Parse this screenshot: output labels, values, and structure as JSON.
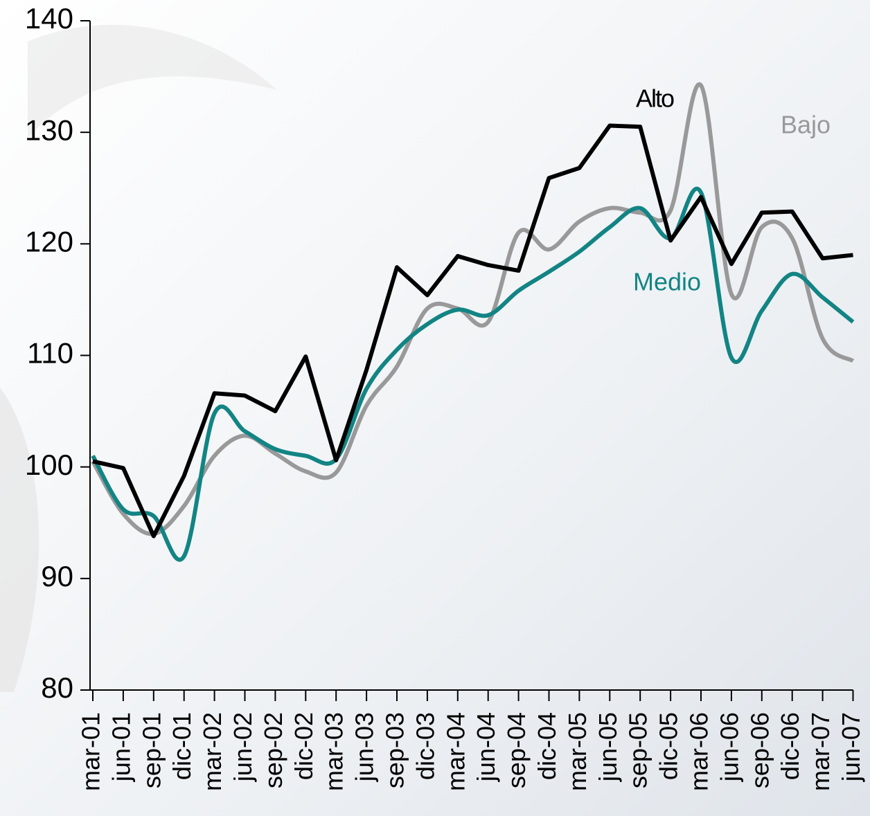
{
  "chart_data": {
    "type": "line",
    "categories": [
      "mar-01",
      "jun-01",
      "sep-01",
      "dic-01",
      "mar-02",
      "jun-02",
      "sep-02",
      "dic-02",
      "mar-03",
      "jun-03",
      "sep-03",
      "dic-03",
      "mar-04",
      "jun-04",
      "sep-04",
      "dic-04",
      "mar-05",
      "jun-05",
      "sep-05",
      "dic-05",
      "mar-06",
      "jun-06",
      "sep-06",
      "dic-06",
      "mar-07",
      "jun-07"
    ],
    "series": [
      {
        "name": "Alto",
        "color": "#000000",
        "values": [
          100.5,
          99.9,
          93.8,
          99.2,
          106.6,
          106.4,
          105.0,
          109.9,
          100.6,
          108.7,
          117.9,
          115.4,
          118.9,
          118.1,
          117.6,
          125.9,
          126.8,
          130.6,
          130.5,
          120.3,
          124.2,
          118.2,
          122.8,
          122.9,
          118.7,
          119.0
        ]
      },
      {
        "name": "Bajo",
        "color": "#999999",
        "values": [
          100.5,
          95.8,
          94.0,
          96.5,
          101.0,
          102.8,
          101.2,
          99.6,
          99.5,
          105.5,
          109.0,
          114.2,
          114.2,
          113.0,
          121.0,
          119.5,
          122.0,
          123.2,
          122.8,
          123.0,
          134.2,
          115.5,
          121.5,
          120.5,
          111.5,
          109.5
        ]
      },
      {
        "name": "Medio",
        "color": "#138484",
        "values": [
          101.0,
          96.2,
          95.6,
          92.0,
          104.8,
          103.2,
          101.6,
          101.0,
          100.7,
          107.0,
          110.5,
          112.8,
          114.1,
          113.6,
          115.8,
          117.5,
          119.3,
          121.5,
          123.2,
          120.5,
          124.6,
          109.8,
          114.0,
          117.3,
          115.2,
          113.0
        ]
      }
    ],
    "ylim": [
      80,
      140
    ],
    "yticks": [
      80,
      90,
      100,
      110,
      120,
      130,
      140
    ],
    "grid": false
  }
}
